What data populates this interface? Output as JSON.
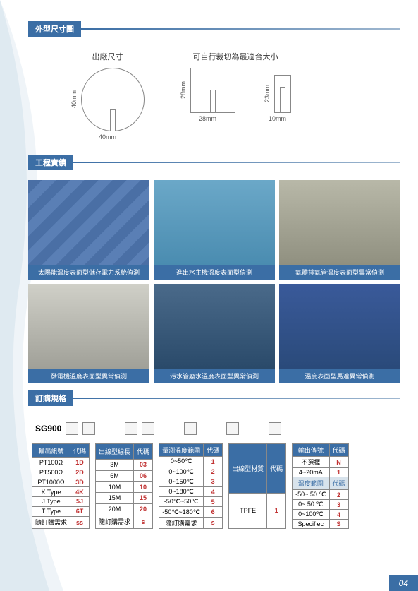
{
  "page_number": "04",
  "sections": {
    "dimensions": {
      "header": "外型尺寸圖",
      "factory_title": "出廠尺寸",
      "custom_title": "可自行裁切為最適合大小",
      "circle": {
        "width": "40mm",
        "height": "40mm"
      },
      "rect1": {
        "width": "28mm",
        "height": "28mm"
      },
      "rect2": {
        "width": "10mm",
        "height": "23mm"
      }
    },
    "projects": {
      "header": "工程實績",
      "items": [
        "太陽能溫度表面型儲存電力系統偵測",
        "進出水主機溫度表面型偵測",
        "氣體排氣管溫度表面型異常偵測",
        "發電機溫度表面型異常偵測",
        "污水管廢水溫度表面型異常偵測",
        "溫度表面型馬達異常偵測"
      ]
    },
    "order": {
      "header": "訂購規格",
      "model": "SG900",
      "tables": {
        "output_signal": {
          "headers": [
            "輸出訊號",
            "代碼"
          ],
          "rows": [
            [
              "PT100Ω",
              "1D"
            ],
            [
              "PT500Ω",
              "2D"
            ],
            [
              "PT1000Ω",
              "3D"
            ],
            [
              "K Type",
              "4K"
            ],
            [
              "J Type",
              "5J"
            ],
            [
              "T Type",
              "6T"
            ],
            [
              "隨訂購需求",
              "ss"
            ]
          ]
        },
        "wire_length": {
          "headers": [
            "出線型線長",
            "代碼"
          ],
          "rows": [
            [
              "3M",
              "03"
            ],
            [
              "6M",
              "06"
            ],
            [
              "10M",
              "10"
            ],
            [
              "15M",
              "15"
            ],
            [
              "20M",
              "20"
            ],
            [
              "隨訂購需求",
              "s"
            ]
          ]
        },
        "temp_range": {
          "headers": [
            "量測溫度範圍",
            "代碼"
          ],
          "rows": [
            [
              "0~50℃",
              "1"
            ],
            [
              "0~100℃",
              "2"
            ],
            [
              "0~150℃",
              "3"
            ],
            [
              "0~180℃",
              "4"
            ],
            [
              "-50℃~50℃",
              "5"
            ],
            [
              "-50℃~180℃",
              "6"
            ],
            [
              "隨訂購需求",
              "s"
            ]
          ]
        },
        "wire_material": {
          "headers": [
            "出線型材質",
            "代碼"
          ],
          "rows": [
            [
              "TPFE",
              "1"
            ]
          ]
        },
        "output_transmit": {
          "headers": [
            "輸出傳號",
            "代碼"
          ],
          "rows": [
            [
              "不選擇",
              "N"
            ],
            [
              "4~20mA",
              "1"
            ]
          ],
          "sub_headers": [
            "溫度範圍",
            "代碼"
          ],
          "sub_rows": [
            [
              "-50~ 50 ℃",
              "2"
            ],
            [
              "0~ 50 ℃",
              "3"
            ],
            [
              "0~100℃",
              "4"
            ],
            [
              "Specifiec",
              "S"
            ]
          ]
        }
      }
    }
  },
  "colors": {
    "primary": "#3b6ea5",
    "code_red": "#c03030"
  }
}
